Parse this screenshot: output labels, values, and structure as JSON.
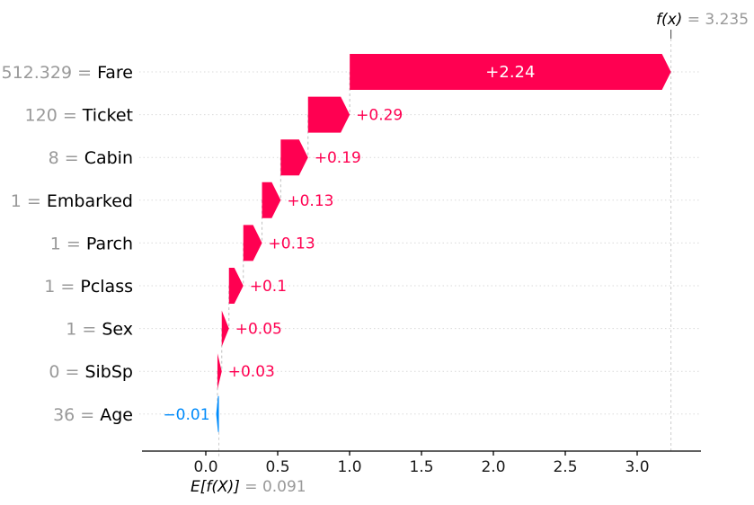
{
  "chart_data": {
    "type": "bar",
    "variant": "shap-waterfall",
    "title": "",
    "xlabel": "",
    "ylabel": "",
    "grid": "horizontal-dotted",
    "legend": null,
    "x_ticks": [
      "0.0",
      "0.5",
      "1.0",
      "1.5",
      "2.0",
      "2.5",
      "3.0"
    ],
    "xlim": [
      -0.44,
      3.44
    ],
    "base_value": 0.091,
    "final_value": 3.235,
    "fx": {
      "symbol": "f(x)",
      "equals": " = ",
      "value_text": "3.235"
    },
    "efx": {
      "symbol": "E[f(X)]",
      "equals": " = ",
      "value_text": "0.091"
    },
    "features": [
      {
        "name": "Fare",
        "data_value": "512.329",
        "contribution": 2.24,
        "label": "+2.24",
        "x_start": 1.001,
        "x_end": 3.235,
        "sign": "positive",
        "label_placement": "inside"
      },
      {
        "name": "Ticket",
        "data_value": "120",
        "contribution": 0.29,
        "label": "+0.29",
        "x_start": 0.711,
        "x_end": 1.001,
        "sign": "positive",
        "label_placement": "right"
      },
      {
        "name": "Cabin",
        "data_value": "8",
        "contribution": 0.19,
        "label": "+0.19",
        "x_start": 0.521,
        "x_end": 0.711,
        "sign": "positive",
        "label_placement": "right"
      },
      {
        "name": "Embarked",
        "data_value": "1",
        "contribution": 0.13,
        "label": "+0.13",
        "x_start": 0.391,
        "x_end": 0.521,
        "sign": "positive",
        "label_placement": "right"
      },
      {
        "name": "Parch",
        "data_value": "1",
        "contribution": 0.13,
        "label": "+0.13",
        "x_start": 0.261,
        "x_end": 0.391,
        "sign": "positive",
        "label_placement": "right"
      },
      {
        "name": "Pclass",
        "data_value": "1",
        "contribution": 0.1,
        "label": "+0.1",
        "x_start": 0.161,
        "x_end": 0.261,
        "sign": "positive",
        "label_placement": "right"
      },
      {
        "name": "Sex",
        "data_value": "1",
        "contribution": 0.05,
        "label": "+0.05",
        "x_start": 0.111,
        "x_end": 0.161,
        "sign": "positive",
        "label_placement": "right"
      },
      {
        "name": "SibSp",
        "data_value": "0",
        "contribution": 0.03,
        "label": "+0.03",
        "x_start": 0.081,
        "x_end": 0.111,
        "sign": "positive",
        "label_placement": "right"
      },
      {
        "name": "Age",
        "data_value": "36",
        "contribution": -0.01,
        "label": "−0.01",
        "x_start": 0.081,
        "x_end": 0.091,
        "sign": "negative",
        "label_placement": "left"
      }
    ],
    "colors": {
      "positive": "#ff0051",
      "negative": "#008bfb",
      "muted_text": "#999999",
      "feature_text": "#000000",
      "tick_label": "#1a1a1a",
      "axis": "#000000",
      "gridline": "#d9d9d9",
      "connector": "#bfbfbf",
      "reference_dash": "#cccccc",
      "inside_label": "#ffffff"
    }
  }
}
